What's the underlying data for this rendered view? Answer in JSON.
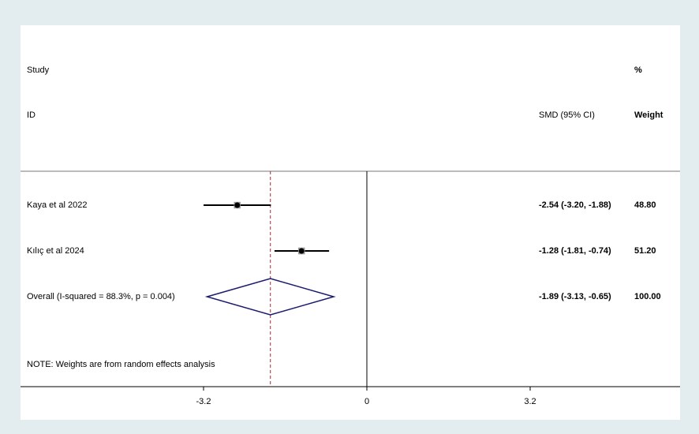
{
  "chart_data": {
    "type": "forest",
    "header": {
      "study": "Study",
      "id": "ID",
      "percent": "%",
      "weight": "Weight",
      "estimate": "SMD (95% CI)"
    },
    "studies": [
      {
        "name": "Kaya et al 2022",
        "estimate": -2.54,
        "lower": -3.2,
        "upper": -1.88,
        "weight": 48.8,
        "estimate_label": "-2.54 (-3.20, -1.88)",
        "weight_label": "48.80"
      },
      {
        "name": "Kılıç et al 2024",
        "estimate": -1.28,
        "lower": -1.81,
        "upper": -0.74,
        "weight": 51.2,
        "estimate_label": "-1.28 (-1.81, -0.74)",
        "weight_label": "51.20"
      }
    ],
    "overall": {
      "name": "Overall  (I-squared = 88.3%, p = 0.004)",
      "estimate": -1.89,
      "lower": -3.13,
      "upper": -0.65,
      "weight": 100,
      "estimate_label": "-1.89 (-3.13, -0.65)",
      "weight_label": "100.00"
    },
    "note": "NOTE: Weights are from random effects analysis",
    "xlim": [
      -3.2,
      3.2
    ],
    "xticks": [
      -3.2,
      0,
      3.2
    ],
    "color": "#000000",
    "diamond_color": "#1a1a6e",
    "reference_color": "#a52a2a"
  }
}
